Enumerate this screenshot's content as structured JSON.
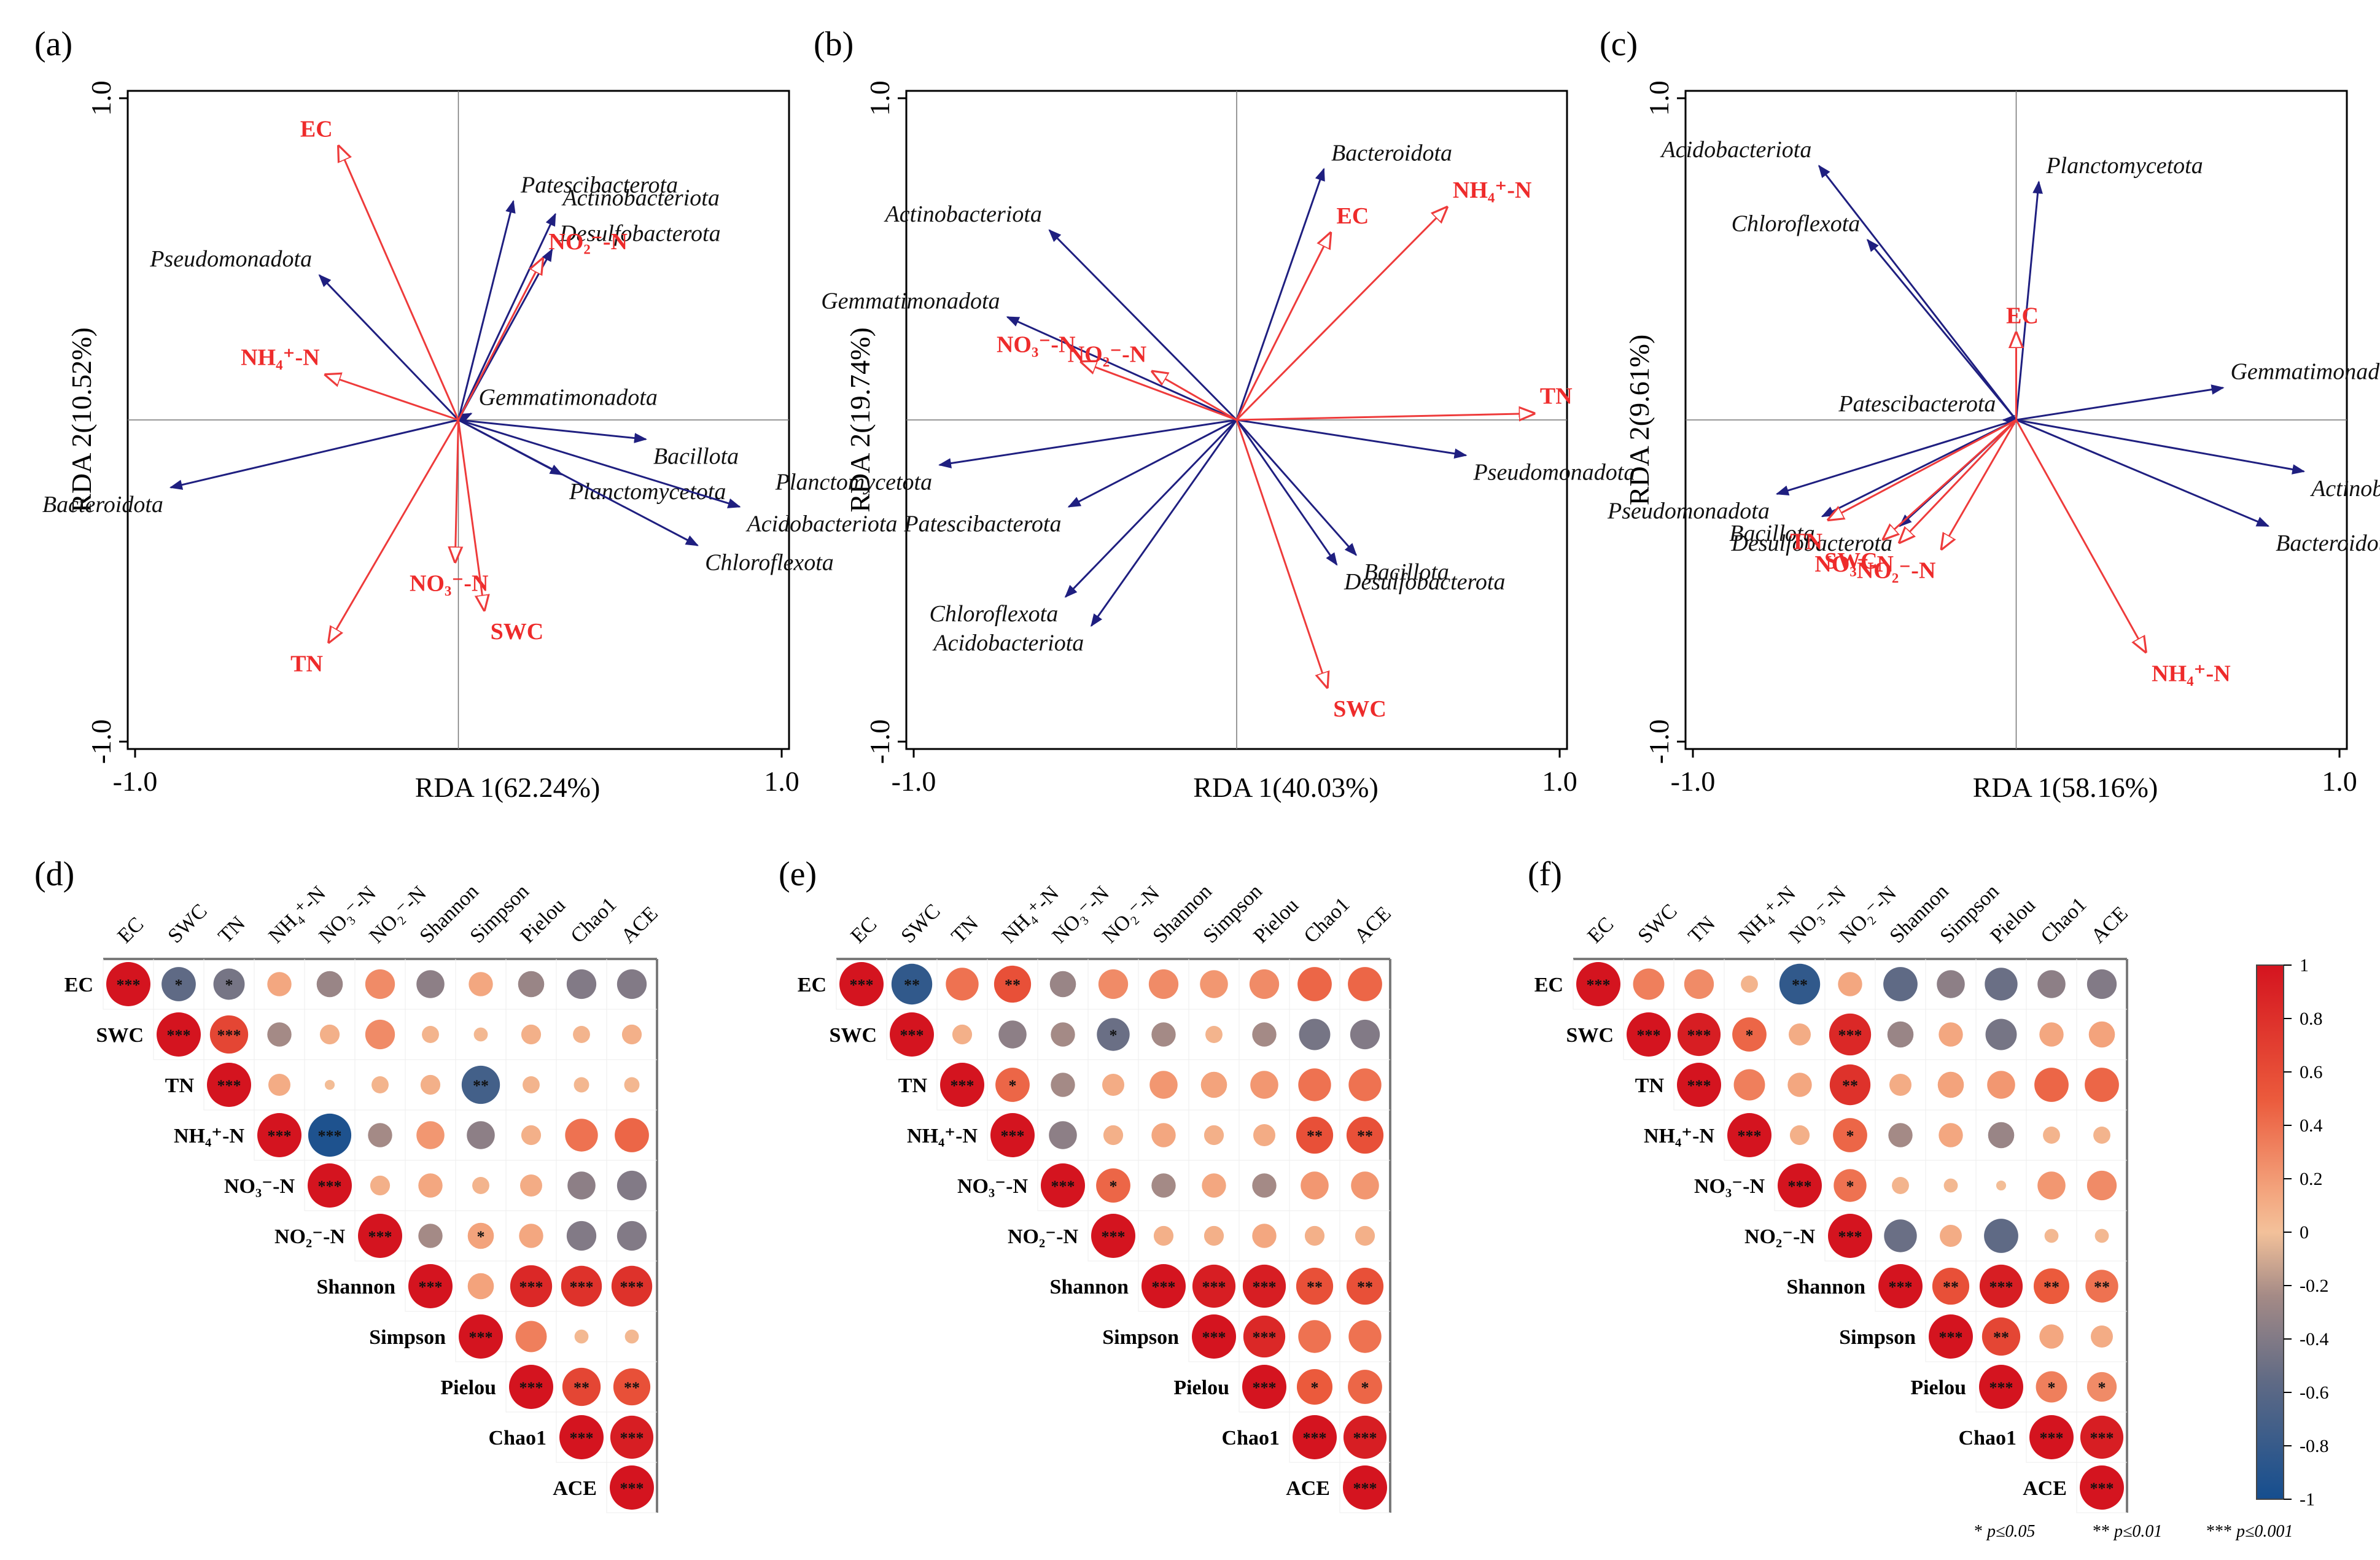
{
  "colors": {
    "species": "#1f1f80",
    "env": "#ee3b3b",
    "neg": "#1b4f8c",
    "pos": "#d4141f",
    "mid": "#f3c19a"
  },
  "chart_data": [
    {
      "type": "scatter",
      "subtype": "rda-biplot",
      "panel": "(a)",
      "xlabel": "RDA 1(62.24%)",
      "ylabel": "RDA 2(10.52%)",
      "xticks": [
        "-1.0",
        "1.0"
      ],
      "yticks": [
        "1.0",
        "-1.0"
      ],
      "xlim": [
        -1,
        1
      ],
      "ylim": [
        -1,
        1
      ],
      "species": [
        {
          "name": "Patescibacterota",
          "x": 0.17,
          "y": 0.68
        },
        {
          "name": "Actinobacteriota",
          "x": 0.3,
          "y": 0.64
        },
        {
          "name": "Desulfobacterota",
          "x": 0.29,
          "y": 0.53
        },
        {
          "name": "Pseudomonadota",
          "x": -0.43,
          "y": 0.45
        },
        {
          "name": "Gemmatimonadota",
          "x": 0.04,
          "y": 0.02
        },
        {
          "name": "Bacillota",
          "x": 0.58,
          "y": -0.06
        },
        {
          "name": "Bacteroidota",
          "x": -0.89,
          "y": -0.21
        },
        {
          "name": "Planctomycetota",
          "x": 0.32,
          "y": -0.17
        },
        {
          "name": "Acidobacteriota",
          "x": 0.87,
          "y": -0.27
        },
        {
          "name": "Chloroflexota",
          "x": 0.74,
          "y": -0.39
        }
      ],
      "env": [
        {
          "name": "EC",
          "x": -0.37,
          "y": 0.85
        },
        {
          "name": "NO₂⁻-N",
          "x": 0.26,
          "y": 0.5
        },
        {
          "name": "NH₄⁺-N",
          "x": -0.41,
          "y": 0.14
        },
        {
          "name": "NO₃⁻-N",
          "x": -0.01,
          "y": -0.44
        },
        {
          "name": "SWC",
          "x": 0.08,
          "y": -0.59
        },
        {
          "name": "TN",
          "x": -0.4,
          "y": -0.69
        }
      ],
      "env_labels": [
        "EC",
        "NO₂⁻-N",
        "NH₄⁺-N",
        "NO₃⁻-N",
        "SWC",
        "TN"
      ]
    },
    {
      "type": "scatter",
      "subtype": "rda-biplot",
      "panel": "(b)",
      "xlabel": "RDA 1(40.03%)",
      "ylabel": "RDA 2(19.74%)",
      "xticks": [
        "-1.0",
        "1.0"
      ],
      "yticks": [
        "1.0",
        "-1.0"
      ],
      "xlim": [
        -1,
        1
      ],
      "ylim": [
        -1,
        1
      ],
      "species": [
        {
          "name": "Bacteroidota",
          "x": 0.27,
          "y": 0.78
        },
        {
          "name": "Actinobacteriota",
          "x": -0.58,
          "y": 0.59
        },
        {
          "name": "Gemmatimonadota",
          "x": -0.71,
          "y": 0.32
        },
        {
          "name": "Pseudomonadota",
          "x": 0.71,
          "y": -0.11
        },
        {
          "name": "Planctomycetota",
          "x": -0.92,
          "y": -0.14
        },
        {
          "name": "Patescibacterota",
          "x": -0.52,
          "y": -0.27
        },
        {
          "name": "Bacillota",
          "x": 0.37,
          "y": -0.42
        },
        {
          "name": "Desulfobacterota",
          "x": 0.31,
          "y": -0.45
        },
        {
          "name": "Chloroflexota",
          "x": -0.53,
          "y": -0.55
        },
        {
          "name": "Acidobacteriota",
          "x": -0.45,
          "y": -0.64
        }
      ],
      "env": [
        {
          "name": "NH₄⁺-N",
          "x": 0.65,
          "y": 0.66
        },
        {
          "name": "EC",
          "x": 0.29,
          "y": 0.58
        },
        {
          "name": "NO₃⁻-N",
          "x": -0.48,
          "y": 0.18
        },
        {
          "name": "NO₂⁻-N",
          "x": -0.26,
          "y": 0.15
        },
        {
          "name": "TN",
          "x": 0.92,
          "y": 0.02
        },
        {
          "name": "SWC",
          "x": 0.28,
          "y": -0.83
        }
      ],
      "env_labels": [
        "NH₄⁺-N",
        "EC",
        "NO₃⁻-N",
        "NO₂⁻-N",
        "TN",
        "SWC"
      ]
    },
    {
      "type": "scatter",
      "subtype": "rda-biplot",
      "panel": "(c)",
      "xlabel": "RDA 1(58.16%)",
      "ylabel": "RDA 2(9.61%)",
      "xticks": [
        "-1.0",
        "1.0"
      ],
      "yticks": [
        "1.0",
        "-1.0"
      ],
      "xlim": [
        -1,
        1
      ],
      "ylim": [
        -1,
        1
      ],
      "species": [
        {
          "name": "Acidobacteriota",
          "x": -0.61,
          "y": 0.79
        },
        {
          "name": "Planctomycetota",
          "x": 0.07,
          "y": 0.74
        },
        {
          "name": "Chloroflexota",
          "x": -0.46,
          "y": 0.56
        },
        {
          "name": "Gemmatimonadota",
          "x": 0.64,
          "y": 0.1
        },
        {
          "name": "Patescibacterota",
          "x": -0.04,
          "y": 0.0
        },
        {
          "name": "Pseudomonadota",
          "x": -0.74,
          "y": -0.23
        },
        {
          "name": "Actinobacteriota",
          "x": 0.89,
          "y": -0.16
        },
        {
          "name": "Bacillota",
          "x": -0.6,
          "y": -0.3
        },
        {
          "name": "Desulfobacterota",
          "x": -0.36,
          "y": -0.33
        },
        {
          "name": "Bacteroidota",
          "x": 0.78,
          "y": -0.33
        }
      ],
      "env": [
        {
          "name": "EC",
          "x": 0.0,
          "y": 0.27
        },
        {
          "name": "TN",
          "x": -0.58,
          "y": -0.31
        },
        {
          "name": "SWC",
          "x": -0.41,
          "y": -0.37
        },
        {
          "name": "NO₃⁻-N",
          "x": -0.36,
          "y": -0.38
        },
        {
          "name": "NO₂⁻-N",
          "x": -0.23,
          "y": -0.4
        },
        {
          "name": "NH₄⁺-N",
          "x": 0.4,
          "y": -0.72
        }
      ],
      "env_labels": [
        "EC",
        "TN",
        "SWC",
        "NO₃⁻-N",
        "NO₂⁻-N",
        "NH₄⁺-N"
      ]
    },
    {
      "type": "heatmap",
      "subtype": "correlation-upper",
      "panel": "(d)",
      "vars": [
        "EC",
        "SWC",
        "TN",
        "NH₄⁺-N",
        "NO₃⁻-N",
        "NO₂⁻-N",
        "Shannon",
        "Simpson",
        "Pielou",
        "Chao1",
        "ACE"
      ],
      "matrix": [
        [
          1,
          -0.6,
          -0.5,
          0.3,
          -0.35,
          0.45,
          -0.4,
          0.3,
          -0.35,
          -0.45,
          -0.45
        ],
        [
          0,
          1,
          0.75,
          -0.3,
          0.2,
          0.45,
          0.15,
          0.1,
          0.2,
          0.15,
          0.2
        ],
        [
          0,
          0,
          1,
          0.25,
          0.05,
          0.15,
          0.2,
          -0.75,
          0.15,
          0.12,
          0.12
        ],
        [
          0,
          0,
          0,
          1,
          -0.95,
          -0.3,
          0.4,
          -0.4,
          0.2,
          0.55,
          0.6
        ],
        [
          0,
          0,
          0,
          0,
          1,
          0.2,
          0.3,
          0.15,
          0.25,
          -0.4,
          -0.45
        ],
        [
          0,
          0,
          0,
          0,
          0,
          1,
          -0.3,
          0.35,
          0.3,
          -0.45,
          -0.45
        ],
        [
          0,
          0,
          0,
          0,
          0,
          0,
          1,
          0.35,
          0.9,
          0.85,
          0.85
        ],
        [
          0,
          0,
          0,
          0,
          0,
          0,
          0,
          1,
          0.5,
          0.1,
          0.1
        ],
        [
          0,
          0,
          0,
          0,
          0,
          0,
          0,
          0,
          1,
          0.75,
          0.7
        ],
        [
          0,
          0,
          0,
          0,
          0,
          0,
          0,
          0,
          0,
          1,
          0.95
        ],
        [
          0,
          0,
          0,
          0,
          0,
          0,
          0,
          0,
          0,
          0,
          1
        ]
      ],
      "sig": [
        [
          "***",
          "*",
          "*",
          "",
          "",
          "",
          "",
          "",
          "",
          "",
          ""
        ],
        [
          "",
          "***",
          "***",
          "",
          "",
          "",
          "",
          "",
          "",
          "",
          ""
        ],
        [
          "",
          "",
          "***",
          "",
          "",
          "",
          "",
          "**",
          "",
          "",
          ""
        ],
        [
          "",
          "",
          "",
          "***",
          "***",
          "",
          "",
          "",
          "",
          "",
          ""
        ],
        [
          "",
          "",
          "",
          "",
          "***",
          "",
          "",
          "",
          "",
          "",
          ""
        ],
        [
          "",
          "",
          "",
          "",
          "",
          "***",
          "",
          "*",
          "",
          "",
          ""
        ],
        [
          "",
          "",
          "",
          "",
          "",
          "",
          "***",
          "",
          "***",
          "***",
          "***"
        ],
        [
          "",
          "",
          "",
          "",
          "",
          "",
          "",
          "***",
          "",
          "",
          ""
        ],
        [
          "",
          "",
          "",
          "",
          "",
          "",
          "",
          "",
          "***",
          "**",
          "**"
        ],
        [
          "",
          "",
          "",
          "",
          "",
          "",
          "",
          "",
          "",
          "***",
          "***"
        ],
        [
          "",
          "",
          "",
          "",
          "",
          "",
          "",
          "",
          "",
          "",
          "***"
        ]
      ]
    },
    {
      "type": "heatmap",
      "subtype": "correlation-upper",
      "panel": "(e)",
      "vars": [
        "EC",
        "SWC",
        "TN",
        "NH₄⁺-N",
        "NO₃⁻-N",
        "NO₂⁻-N",
        "Shannon",
        "Simpson",
        "Pielou",
        "Chao1",
        "ACE"
      ],
      "matrix": [
        [
          1,
          -0.85,
          0.55,
          0.7,
          -0.35,
          0.45,
          0.45,
          0.4,
          0.45,
          0.6,
          0.6
        ],
        [
          0,
          1,
          0.2,
          -0.4,
          -0.3,
          -0.55,
          -0.3,
          0.15,
          -0.3,
          -0.5,
          -0.45
        ],
        [
          0,
          0,
          1,
          0.6,
          -0.3,
          0.25,
          0.4,
          0.35,
          0.4,
          0.55,
          0.55
        ],
        [
          0,
          0,
          0,
          1,
          -0.4,
          0.2,
          0.3,
          0.2,
          0.25,
          0.7,
          0.7
        ],
        [
          0,
          0,
          0,
          0,
          1,
          0.6,
          -0.3,
          0.3,
          -0.3,
          0.4,
          0.4
        ],
        [
          0,
          0,
          0,
          0,
          0,
          1,
          0.2,
          0.2,
          0.3,
          0.2,
          0.2
        ],
        [
          0,
          0,
          0,
          0,
          0,
          0,
          1,
          0.95,
          0.95,
          0.7,
          0.7
        ],
        [
          0,
          0,
          0,
          0,
          0,
          0,
          0,
          1,
          0.9,
          0.55,
          0.55
        ],
        [
          0,
          0,
          0,
          0,
          0,
          0,
          0,
          0,
          1,
          0.65,
          0.6
        ],
        [
          0,
          0,
          0,
          0,
          0,
          0,
          0,
          0,
          0,
          1,
          0.95
        ],
        [
          0,
          0,
          0,
          0,
          0,
          0,
          0,
          0,
          0,
          0,
          1
        ]
      ],
      "sig": [
        [
          "***",
          "**",
          "",
          "**",
          "",
          "",
          "",
          "",
          "",
          "",
          ""
        ],
        [
          "",
          "***",
          "",
          "",
          "",
          "*",
          "",
          "",
          "",
          "",
          ""
        ],
        [
          "",
          "",
          "***",
          "*",
          "",
          "",
          "",
          "",
          "",
          "",
          ""
        ],
        [
          "",
          "",
          "",
          "***",
          "",
          "",
          "",
          "",
          "",
          "**",
          "**"
        ],
        [
          "",
          "",
          "",
          "",
          "***",
          "*",
          "",
          "",
          "",
          "",
          ""
        ],
        [
          "",
          "",
          "",
          "",
          "",
          "***",
          "",
          "",
          "",
          "",
          ""
        ],
        [
          "",
          "",
          "",
          "",
          "",
          "",
          "***",
          "***",
          "***",
          "**",
          "**"
        ],
        [
          "",
          "",
          "",
          "",
          "",
          "",
          "",
          "***",
          "***",
          "",
          ""
        ],
        [
          "",
          "",
          "",
          "",
          "",
          "",
          "",
          "",
          "***",
          "*",
          "*"
        ],
        [
          "",
          "",
          "",
          "",
          "",
          "",
          "",
          "",
          "",
          "***",
          "***"
        ],
        [
          "",
          "",
          "",
          "",
          "",
          "",
          "",
          "",
          "",
          "",
          "***"
        ]
      ]
    },
    {
      "type": "heatmap",
      "subtype": "correlation-upper",
      "panel": "(f)",
      "vars": [
        "EC",
        "SWC",
        "TN",
        "NH₄⁺-N",
        "NO₃⁻-N",
        "NO₂⁻-N",
        "Shannon",
        "Simpson",
        "Pielou",
        "Chao1",
        "ACE"
      ],
      "matrix": [
        [
          1,
          0.5,
          0.45,
          0.15,
          -0.85,
          0.3,
          -0.6,
          -0.4,
          -0.55,
          -0.4,
          -0.45
        ],
        [
          0,
          1,
          0.95,
          0.6,
          0.25,
          0.9,
          -0.35,
          0.3,
          -0.5,
          0.3,
          0.35
        ],
        [
          0,
          0,
          1,
          0.5,
          0.3,
          0.85,
          0.25,
          0.35,
          0.4,
          0.6,
          0.6
        ],
        [
          0,
          0,
          0,
          1,
          0.2,
          0.6,
          -0.3,
          0.3,
          -0.35,
          0.15,
          0.15
        ],
        [
          0,
          0,
          0,
          0,
          1,
          0.55,
          0.15,
          0.1,
          0.05,
          0.4,
          0.45
        ],
        [
          0,
          0,
          0,
          0,
          0,
          1,
          -0.55,
          0.25,
          -0.6,
          0.1,
          0.1
        ],
        [
          0,
          0,
          0,
          0,
          0,
          0,
          1,
          0.7,
          0.95,
          0.65,
          0.55
        ],
        [
          0,
          0,
          0,
          0,
          0,
          0,
          0,
          1,
          0.75,
          0.3,
          0.25
        ],
        [
          0,
          0,
          0,
          0,
          0,
          0,
          0,
          0,
          1,
          0.5,
          0.45
        ],
        [
          0,
          0,
          0,
          0,
          0,
          0,
          0,
          0,
          0,
          1,
          0.95
        ],
        [
          0,
          0,
          0,
          0,
          0,
          0,
          0,
          0,
          0,
          0,
          1
        ]
      ],
      "sig": [
        [
          "***",
          "",
          "",
          "",
          "**",
          "",
          "",
          "",
          "",
          "",
          ""
        ],
        [
          "",
          "***",
          "***",
          "*",
          "",
          "***",
          "",
          "",
          "",
          "",
          ""
        ],
        [
          "",
          "",
          "***",
          "",
          "",
          "**",
          "",
          "",
          "",
          "",
          ""
        ],
        [
          "",
          "",
          "",
          "***",
          "",
          "*",
          "",
          "",
          "",
          "",
          ""
        ],
        [
          "",
          "",
          "",
          "",
          "***",
          "*",
          "",
          "",
          "",
          "",
          ""
        ],
        [
          "",
          "",
          "",
          "",
          "",
          "***",
          "",
          "",
          "",
          "",
          ""
        ],
        [
          "",
          "",
          "",
          "",
          "",
          "",
          "***",
          "**",
          "***",
          "**",
          "**"
        ],
        [
          "",
          "",
          "",
          "",
          "",
          "",
          "",
          "***",
          "**",
          "",
          ""
        ],
        [
          "",
          "",
          "",
          "",
          "",
          "",
          "",
          "",
          "***",
          "*",
          "*"
        ],
        [
          "",
          "",
          "",
          "",
          "",
          "",
          "",
          "",
          "",
          "***",
          "***"
        ],
        [
          "",
          "",
          "",
          "",
          "",
          "",
          "",
          "",
          "",
          "",
          "***"
        ]
      ]
    }
  ],
  "colorbar": {
    "ticks": [
      "1",
      "0.8",
      "0.6",
      "0.4",
      "0.2",
      "0",
      "-0.2",
      "-0.4",
      "-0.6",
      "-0.8",
      "-1"
    ]
  },
  "significance_note": {
    "p1": "p≤0.05",
    "p2": "p≤0.01",
    "p3": "p≤0.001"
  }
}
